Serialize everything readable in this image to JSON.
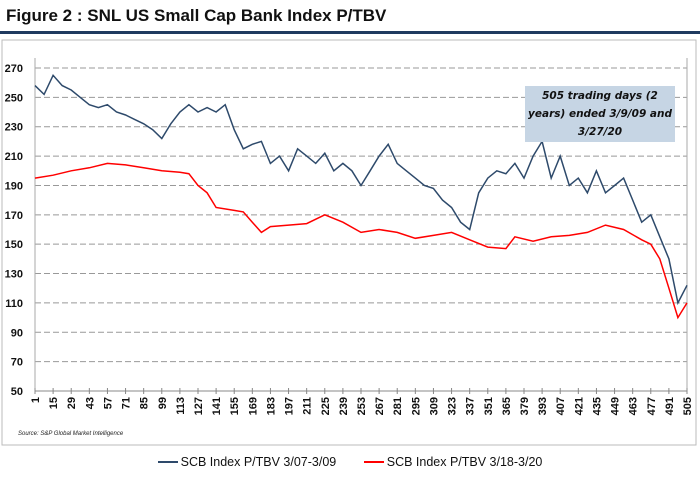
{
  "title": "Figure 2 : SNL US Small Cap Bank Index P/TBV",
  "source": "Source: S&P Global Market Intelligence",
  "annotation": "505 trading days (2 years) ended 3/9/09 and 3/27/20",
  "chart_data": {
    "type": "line",
    "title": "",
    "xlabel": "",
    "ylabel": "",
    "ylim": [
      50,
      270
    ],
    "xlim": [
      1,
      505
    ],
    "yticks": [
      50,
      70,
      90,
      110,
      130,
      150,
      170,
      190,
      210,
      230,
      250,
      270
    ],
    "xticks": [
      1,
      15,
      29,
      43,
      57,
      71,
      85,
      99,
      113,
      127,
      141,
      155,
      169,
      183,
      197,
      211,
      225,
      239,
      253,
      267,
      281,
      295,
      309,
      323,
      337,
      351,
      365,
      379,
      393,
      407,
      421,
      435,
      449,
      463,
      477,
      491,
      505
    ],
    "grid": "horizontal dashed",
    "legend": "bottom",
    "series": [
      {
        "name": "SCB Index P/TBV 3/07-3/09",
        "color": "#2e4a6b",
        "x": [
          1,
          8,
          15,
          22,
          29,
          36,
          43,
          50,
          57,
          64,
          71,
          78,
          85,
          92,
          99,
          106,
          113,
          120,
          127,
          134,
          141,
          148,
          155,
          162,
          169,
          176,
          183,
          190,
          197,
          204,
          211,
          218,
          225,
          232,
          239,
          246,
          253,
          260,
          267,
          274,
          281,
          288,
          295,
          302,
          309,
          316,
          323,
          330,
          337,
          344,
          351,
          358,
          365,
          372,
          379,
          386,
          393,
          400,
          407,
          414,
          421,
          428,
          435,
          442,
          449,
          456,
          463,
          470,
          477,
          484,
          491,
          498,
          505
        ],
        "y": [
          258,
          252,
          265,
          258,
          255,
          250,
          245,
          243,
          245,
          240,
          238,
          235,
          232,
          228,
          222,
          232,
          240,
          245,
          240,
          243,
          240,
          245,
          228,
          215,
          218,
          220,
          205,
          210,
          200,
          215,
          210,
          205,
          212,
          200,
          205,
          200,
          190,
          200,
          210,
          218,
          205,
          200,
          195,
          190,
          188,
          180,
          175,
          165,
          160,
          185,
          195,
          200,
          198,
          205,
          195,
          210,
          220,
          195,
          210,
          190,
          195,
          185,
          200,
          185,
          190,
          195,
          180,
          165,
          170,
          155,
          140,
          110,
          122
        ]
      },
      {
        "name": "SCB Index P/TBV 3/18-3/20",
        "color": "#ff0000",
        "x": [
          1,
          15,
          29,
          43,
          57,
          71,
          85,
          99,
          113,
          120,
          127,
          134,
          141,
          155,
          162,
          169,
          176,
          183,
          197,
          211,
          225,
          239,
          253,
          267,
          281,
          295,
          309,
          323,
          337,
          351,
          365,
          372,
          386,
          400,
          414,
          428,
          442,
          456,
          470,
          477,
          484,
          491,
          498,
          505
        ],
        "y": [
          195,
          197,
          200,
          202,
          205,
          204,
          202,
          200,
          199,
          198,
          190,
          185,
          175,
          173,
          172,
          165,
          158,
          162,
          163,
          164,
          170,
          165,
          158,
          160,
          158,
          154,
          156,
          158,
          153,
          148,
          147,
          155,
          152,
          155,
          156,
          158,
          163,
          160,
          153,
          150,
          140,
          120,
          100,
          110
        ]
      }
    ]
  }
}
